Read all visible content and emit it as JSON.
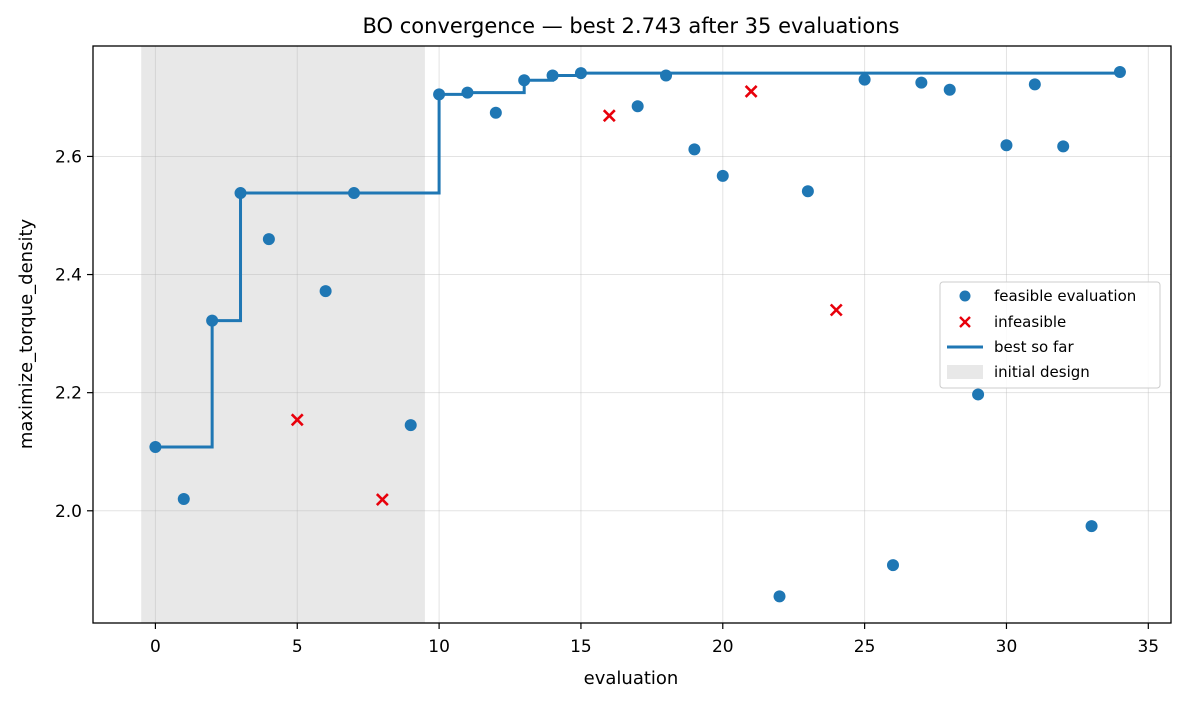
{
  "chart_data": {
    "type": "scatter",
    "title": "BO convergence — best 2.743 after 35 evaluations",
    "xlabel": "evaluation",
    "ylabel": "maximize_torque_density",
    "xlim": [
      -2.2,
      35.8
    ],
    "ylim": [
      1.81,
      2.787
    ],
    "xticks": [
      0,
      5,
      10,
      15,
      20,
      25,
      30,
      35
    ],
    "yticks": [
      2.0,
      2.2,
      2.4,
      2.6
    ],
    "ytick_labels": [
      "2.0",
      "2.2",
      "2.4",
      "2.6"
    ],
    "grid": true,
    "legend_position": "center-right",
    "initial_design_range": [
      -0.5,
      9.5
    ],
    "colors": {
      "feasible": "#1f77b4",
      "infeasible": "#e8000b",
      "best": "#1f77b4",
      "initial_design": "#e8e8e8"
    },
    "series": [
      {
        "name": "feasible evaluation",
        "points": [
          [
            0,
            2.108
          ],
          [
            1,
            2.02
          ],
          [
            2,
            2.322
          ],
          [
            3,
            2.538
          ],
          [
            4,
            2.46
          ],
          [
            6,
            2.372
          ],
          [
            7,
            2.538
          ],
          [
            9,
            2.145
          ],
          [
            10,
            2.705
          ],
          [
            11,
            2.708
          ],
          [
            12,
            2.674
          ],
          [
            13,
            2.729
          ],
          [
            14,
            2.737
          ],
          [
            15,
            2.741
          ],
          [
            17,
            2.685
          ],
          [
            18,
            2.737
          ],
          [
            19,
            2.612
          ],
          [
            20,
            2.567
          ],
          [
            22,
            1.855
          ],
          [
            23,
            2.541
          ],
          [
            25,
            2.73
          ],
          [
            26,
            1.908
          ],
          [
            27,
            2.725
          ],
          [
            28,
            2.713
          ],
          [
            29,
            2.197
          ],
          [
            30,
            2.619
          ],
          [
            31,
            2.722
          ],
          [
            32,
            2.617
          ],
          [
            33,
            1.974
          ],
          [
            34,
            2.743
          ]
        ]
      },
      {
        "name": "infeasible",
        "points": [
          [
            5,
            2.154
          ],
          [
            8,
            2.019
          ],
          [
            16,
            2.669
          ],
          [
            21,
            2.71
          ],
          [
            24,
            2.34
          ]
        ]
      },
      {
        "name": "best so far",
        "points": [
          [
            0,
            2.108
          ],
          [
            1,
            2.108
          ],
          [
            2,
            2.322
          ],
          [
            3,
            2.538
          ],
          [
            4,
            2.538
          ],
          [
            5,
            2.538
          ],
          [
            6,
            2.538
          ],
          [
            7,
            2.538
          ],
          [
            8,
            2.538
          ],
          [
            9,
            2.538
          ],
          [
            10,
            2.705
          ],
          [
            11,
            2.708
          ],
          [
            12,
            2.708
          ],
          [
            13,
            2.729
          ],
          [
            14,
            2.737
          ],
          [
            15,
            2.741
          ],
          [
            16,
            2.741
          ],
          [
            17,
            2.741
          ],
          [
            18,
            2.741
          ],
          [
            19,
            2.741
          ],
          [
            20,
            2.741
          ],
          [
            21,
            2.741
          ],
          [
            22,
            2.741
          ],
          [
            23,
            2.741
          ],
          [
            24,
            2.741
          ],
          [
            25,
            2.741
          ],
          [
            26,
            2.741
          ],
          [
            27,
            2.741
          ],
          [
            28,
            2.741
          ],
          [
            29,
            2.741
          ],
          [
            30,
            2.741
          ],
          [
            31,
            2.741
          ],
          [
            32,
            2.741
          ],
          [
            33,
            2.741
          ],
          [
            34,
            2.743
          ]
        ]
      }
    ],
    "legend": [
      {
        "label": "feasible evaluation",
        "marker": "dot"
      },
      {
        "label": "infeasible",
        "marker": "cross"
      },
      {
        "label": "best so far",
        "marker": "line"
      },
      {
        "label": "initial design",
        "marker": "patch"
      }
    ]
  }
}
